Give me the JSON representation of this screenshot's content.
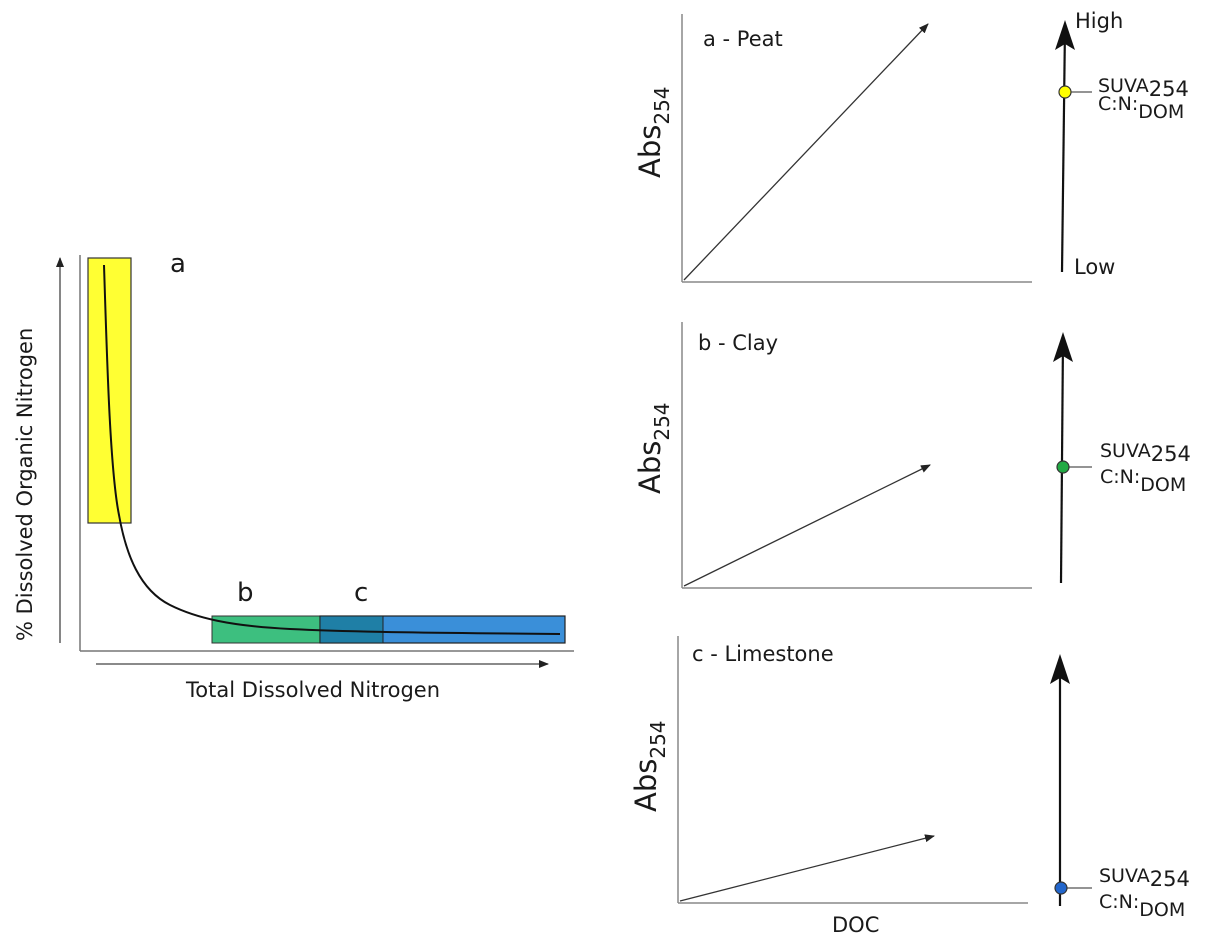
{
  "left_diagram": {
    "y_axis_label": "% Dissolved Organic Nitrogen",
    "x_axis_label": "Total Dissolved Nitrogen",
    "regions": [
      {
        "label": "a",
        "color": "#ffff33"
      },
      {
        "label": "b",
        "color": "#3dbf7f"
      },
      {
        "label": "c",
        "color": "#3a8fd9"
      }
    ]
  },
  "panels": [
    {
      "title": "a - Peat",
      "marker_color": "#ffff00",
      "marker_level": 0.85
    },
    {
      "title": "b - Clay",
      "marker_color": "#22aa44",
      "marker_level": 0.5
    },
    {
      "title": "c - Limestone",
      "marker_color": "#2266cc",
      "marker_level": 0.06
    }
  ],
  "common": {
    "ylabel_main": "Abs",
    "ylabel_sub": "254",
    "xlabel": "DOC",
    "scale_high": "High",
    "scale_low": "Low",
    "suva_main": "SUVA",
    "suva_sub": "254",
    "cn_main": "C:N:",
    "cn_sub": "DOM"
  }
}
